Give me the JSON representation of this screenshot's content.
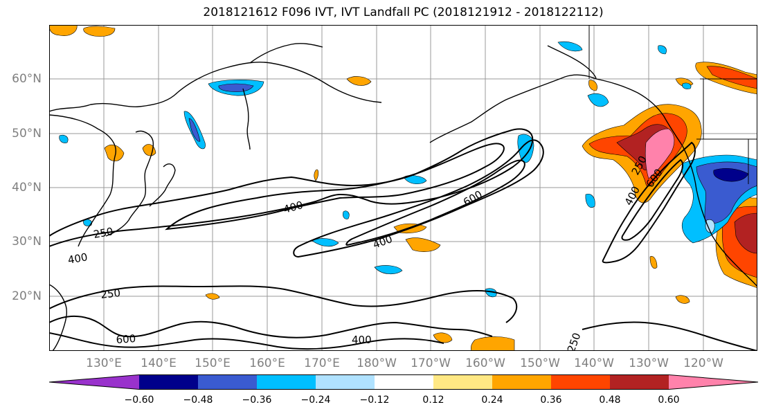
{
  "title": "2018121612 F096 IVT, IVT Landfall PC (2018121912 - 2018122112)",
  "lat_labels": [
    "60°N",
    "50°N",
    "40°N",
    "30°N",
    "20°N"
  ],
  "lon_labels": [
    "130°E",
    "140°E",
    "150°E",
    "160°E",
    "170°E",
    "180°W",
    "170°W",
    "160°W",
    "150°W",
    "140°W",
    "130°W",
    "120°W"
  ],
  "contour_labels": {
    "c400_a": "400",
    "c400_b": "400",
    "c250_a": "250",
    "c250_b": "250",
    "c400_c": "400",
    "c600_a": "600",
    "c400_d": "400",
    "c600_b": "600",
    "c250_c": "250",
    "c400_e": "400",
    "c600_c": "600",
    "c250_d": "250"
  },
  "colorbar": {
    "ticks": [
      "−0.60",
      "−0.48",
      "−0.36",
      "−0.24",
      "−0.12",
      "0.12",
      "0.24",
      "0.36",
      "0.48",
      "0.60"
    ],
    "colors": [
      "#9932cc",
      "#00008b",
      "#3a5bd0",
      "#00bfff",
      "#b0e2ff",
      "#ffffff",
      "#ffe884",
      "#ffa500",
      "#ff4500",
      "#b22222",
      "#ff82ab"
    ],
    "extend": "both"
  },
  "palette": {
    "positive": [
      "#ffe884",
      "#ffa500",
      "#ff4500",
      "#b22222",
      "#ff82ab"
    ],
    "negative": [
      "#b0e2ff",
      "#00bfff",
      "#3a5bd0",
      "#00008b",
      "#9932cc"
    ]
  }
}
